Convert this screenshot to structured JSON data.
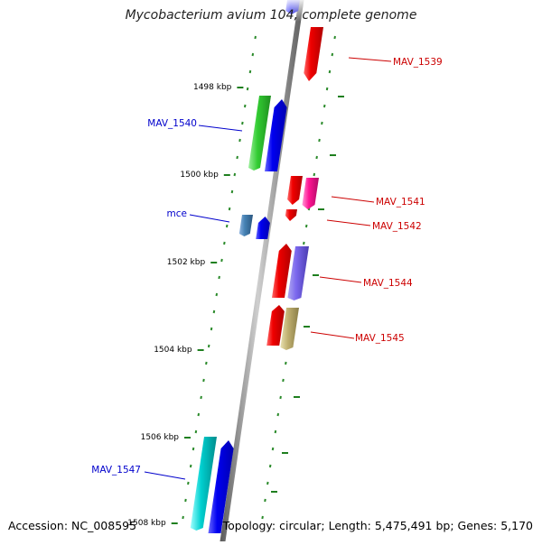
{
  "title": "Mycobacterium avium 104, complete genome",
  "footer": {
    "accession": "Accession: NC_008595",
    "topology": "Topology: circular; Length: 5,475,491 bp; Genes: 5,170"
  },
  "ruler": [
    {
      "label": "1498 kbp"
    },
    {
      "label": "1500 kbp"
    },
    {
      "label": "1502 kbp"
    },
    {
      "label": "1504 kbp"
    },
    {
      "label": "1506 kbp"
    },
    {
      "label": "1508 kbp"
    }
  ],
  "genes": [
    {
      "label": "MAV_1539",
      "color": "#cc0000"
    },
    {
      "label": "MAV_1540",
      "color": "#0000cc"
    },
    {
      "label": "MAV_1541",
      "color": "#cc0000"
    },
    {
      "label": "mce",
      "color": "#0000cc"
    },
    {
      "label": "MAV_1542",
      "color": "#cc0000"
    },
    {
      "label": "MAV_1544",
      "color": "#cc0000"
    },
    {
      "label": "MAV_1545",
      "color": "#cc0000"
    },
    {
      "label": "MAV_1547",
      "color": "#0000cc"
    }
  ]
}
